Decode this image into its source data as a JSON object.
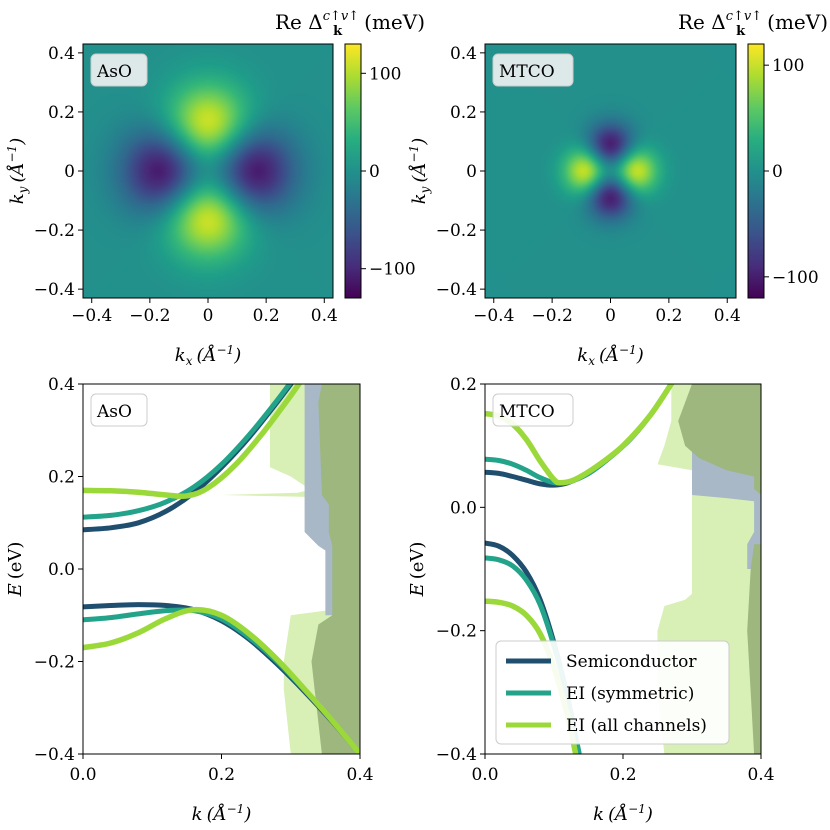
{
  "colors": {
    "semiconductor": "#1f4e6e",
    "ei_symmetric": "#22a38a",
    "ei_all": "#9bd93a",
    "fill_dark_green": "#9db77f",
    "fill_light_green": "#d8efb6",
    "fill_slate": "#a8b8c6"
  },
  "chart_data": [
    {
      "type": "heatmap",
      "panel_label": "AsO",
      "colorbar_title": "Re Δ",
      "colorbar_title_sub": "k",
      "colorbar_title_sup": "c↑v↑",
      "colorbar_title_unit": "(meV)",
      "colormap": "viridis",
      "xlabel_main": "k",
      "xlabel_sub": "x",
      "xlabel_unit": "(Å",
      "xlabel_exp": "−1",
      "ylabel_main": "k",
      "ylabel_sub": "y",
      "ylabel_unit": "(Å",
      "ylabel_exp": "−1",
      "xlim": [
        -0.43,
        0.43
      ],
      "ylim": [
        0.43,
        -0.43
      ],
      "x_ticks": [
        -0.4,
        -0.2,
        0,
        0.2,
        0.4
      ],
      "x_tick_labels": [
        "−0.4",
        "−0.2",
        "0",
        "0.2",
        "0.4"
      ],
      "y_ticks": [
        -0.4,
        -0.2,
        0,
        0.2,
        0.4
      ],
      "y_tick_labels": [
        "−0.4",
        "−0.2",
        "0",
        "0.2",
        "0.4"
      ],
      "clim": [
        -130,
        130
      ],
      "cbar_ticks": [
        100,
        0,
        -100
      ],
      "cbar_tick_labels": [
        "100",
        "0",
        "−100"
      ],
      "model": {
        "a": 0.15,
        "width": 0.1,
        "max_value": 130
      },
      "features": [
        {
          "kx": 0,
          "ky": -0.15,
          "value": 130
        },
        {
          "kx": 0,
          "ky": 0.15,
          "value": 130
        },
        {
          "kx": -0.15,
          "ky": 0,
          "value": -130
        },
        {
          "kx": 0.15,
          "ky": 0,
          "value": -130
        }
      ]
    },
    {
      "type": "heatmap",
      "panel_label": "MTCO",
      "colorbar_title": "Re Δ",
      "colorbar_title_sub": "k",
      "colorbar_title_sup": "c↑v↑",
      "colorbar_title_unit": "(meV)",
      "colormap": "viridis",
      "xlabel_main": "k",
      "xlabel_sub": "x",
      "xlabel_unit": "(Å",
      "xlabel_exp": "−1",
      "ylabel_main": "k",
      "ylabel_sub": "y",
      "ylabel_unit": "(Å",
      "ylabel_exp": "−1",
      "xlim": [
        -0.43,
        0.43
      ],
      "ylim": [
        0.43,
        -0.43
      ],
      "x_ticks": [
        -0.4,
        -0.2,
        0,
        0.2,
        0.4
      ],
      "x_tick_labels": [
        "−0.4",
        "−0.2",
        "0",
        "0.2",
        "0.4"
      ],
      "y_ticks": [
        -0.4,
        -0.2,
        0,
        0.2,
        0.4
      ],
      "y_tick_labels": [
        "−0.4",
        "−0.2",
        "0",
        "0.2",
        "0.4"
      ],
      "clim": [
        -120,
        120
      ],
      "cbar_ticks": [
        100,
        0,
        -100
      ],
      "cbar_tick_labels": [
        "100",
        "0",
        "−100"
      ],
      "model": {
        "a": 0.08,
        "width": 0.055,
        "max_value": 120
      },
      "features": [
        {
          "kx": -0.08,
          "ky": 0,
          "value": 120
        },
        {
          "kx": 0.08,
          "ky": 0,
          "value": 120
        },
        {
          "kx": 0,
          "ky": -0.08,
          "value": -120
        },
        {
          "kx": 0,
          "ky": 0.08,
          "value": -120
        }
      ]
    },
    {
      "type": "line",
      "panel_label": "AsO",
      "xlabel_main": "k",
      "xlabel_unit": "(Å",
      "xlabel_exp": "−1",
      "ylabel_main": "E",
      "ylabel_unit": "(eV)",
      "xlim": [
        0,
        0.4
      ],
      "ylim": [
        -0.4,
        0.4
      ],
      "x_ticks": [
        0,
        0.2,
        0.4
      ],
      "x_tick_labels": [
        "0.0",
        "0.2",
        "0.4"
      ],
      "y_ticks": [
        -0.4,
        -0.2,
        0,
        0.2,
        0.4
      ],
      "y_tick_labels": [
        "−0.4",
        "−0.2",
        "0.0",
        "0.2",
        "0.4"
      ],
      "series": [
        {
          "key": "semiconductor",
          "band": "c",
          "x": [
            0,
            0.04,
            0.08,
            0.12,
            0.16,
            0.2,
            0.24,
            0.28,
            0.32
          ],
          "y": [
            0.085,
            0.089,
            0.1,
            0.125,
            0.165,
            0.22,
            0.285,
            0.36,
            0.44
          ]
        },
        {
          "key": "ei_symmetric",
          "band": "c",
          "x": [
            0,
            0.04,
            0.08,
            0.12,
            0.16,
            0.2,
            0.24,
            0.28,
            0.32
          ],
          "y": [
            0.112,
            0.116,
            0.126,
            0.145,
            0.177,
            0.226,
            0.29,
            0.364,
            0.444
          ]
        },
        {
          "key": "ei_all",
          "band": "c",
          "x": [
            0,
            0.04,
            0.08,
            0.12,
            0.15,
            0.18,
            0.22,
            0.26,
            0.3,
            0.33
          ],
          "y": [
            0.17,
            0.169,
            0.166,
            0.16,
            0.158,
            0.175,
            0.225,
            0.295,
            0.375,
            0.44
          ]
        },
        {
          "key": "semiconductor",
          "band": "v",
          "x": [
            0,
            0.04,
            0.08,
            0.12,
            0.16,
            0.2,
            0.24,
            0.28,
            0.32,
            0.36,
            0.4
          ],
          "y": [
            -0.082,
            -0.079,
            -0.077,
            -0.079,
            -0.088,
            -0.112,
            -0.152,
            -0.205,
            -0.265,
            -0.33,
            -0.4
          ]
        },
        {
          "key": "ei_symmetric",
          "band": "v",
          "x": [
            0,
            0.04,
            0.08,
            0.12,
            0.16,
            0.2,
            0.24,
            0.28,
            0.32,
            0.36,
            0.4
          ],
          "y": [
            -0.11,
            -0.105,
            -0.097,
            -0.09,
            -0.09,
            -0.108,
            -0.148,
            -0.2,
            -0.262,
            -0.328,
            -0.4
          ]
        },
        {
          "key": "ei_all",
          "band": "v",
          "x": [
            0,
            0.04,
            0.08,
            0.12,
            0.16,
            0.2,
            0.24,
            0.28,
            0.32,
            0.36,
            0.4
          ],
          "y": [
            -0.17,
            -0.16,
            -0.138,
            -0.107,
            -0.088,
            -0.1,
            -0.14,
            -0.195,
            -0.26,
            -0.328,
            -0.4
          ]
        }
      ],
      "dos": [
        {
          "key": "fill_light_green",
          "points": [
            [
              0.27,
              0.4
            ],
            [
              0.27,
              0.22
            ],
            [
              0.3,
              0.2
            ],
            [
              0.32,
              0.18
            ],
            [
              0.325,
              0.17
            ],
            [
              0.31,
              0.165
            ],
            [
              0.2,
              0.16
            ],
            [
              0.35,
              0.155
            ],
            [
              0.35,
              -0.09
            ],
            [
              0.3,
              -0.1
            ],
            [
              0.29,
              -0.2
            ],
            [
              0.29,
              -0.26
            ],
            [
              0.3,
              -0.4
            ],
            [
              0.4,
              -0.4
            ],
            [
              0.4,
              0.4
            ]
          ]
        },
        {
          "key": "fill_slate",
          "points": [
            [
              0.32,
              0.4
            ],
            [
              0.32,
              0.08
            ],
            [
              0.34,
              0.05
            ],
            [
              0.35,
              0.04
            ],
            [
              0.35,
              -0.05
            ],
            [
              0.35,
              -0.1
            ],
            [
              0.4,
              -0.1
            ],
            [
              0.4,
              0.4
            ]
          ]
        },
        {
          "key": "fill_dark_green",
          "points": [
            [
              0.345,
              0.4
            ],
            [
              0.34,
              0.36
            ],
            [
              0.345,
              0.16
            ],
            [
              0.355,
              0.14
            ],
            [
              0.355,
              0.08
            ],
            [
              0.36,
              0.05
            ],
            [
              0.36,
              -0.06
            ],
            [
              0.36,
              -0.1
            ],
            [
              0.34,
              -0.12
            ],
            [
              0.33,
              -0.2
            ],
            [
              0.345,
              -0.4
            ],
            [
              0.4,
              -0.4
            ],
            [
              0.4,
              0.4
            ]
          ]
        }
      ]
    },
    {
      "type": "line",
      "panel_label": "MTCO",
      "xlabel_main": "k",
      "xlabel_unit": "(Å",
      "xlabel_exp": "−1",
      "ylabel_main": "E",
      "ylabel_unit": "(eV)",
      "xlim": [
        0,
        0.4
      ],
      "ylim": [
        -0.4,
        0.2
      ],
      "x_ticks": [
        0,
        0.2,
        0.4
      ],
      "x_tick_labels": [
        "0.0",
        "0.2",
        "0.4"
      ],
      "y_ticks": [
        -0.4,
        -0.2,
        0,
        0.2
      ],
      "y_tick_labels": [
        "−0.4",
        "−0.2",
        "0.0",
        "0.2"
      ],
      "series": [
        {
          "key": "semiconductor",
          "band": "c",
          "x": [
            0,
            0.02,
            0.04,
            0.06,
            0.08,
            0.1,
            0.12,
            0.15,
            0.18,
            0.21,
            0.24,
            0.27
          ],
          "y": [
            0.057,
            0.055,
            0.05,
            0.044,
            0.038,
            0.036,
            0.04,
            0.055,
            0.08,
            0.11,
            0.15,
            0.2
          ]
        },
        {
          "key": "ei_symmetric",
          "band": "c",
          "x": [
            0,
            0.02,
            0.04,
            0.06,
            0.08,
            0.1,
            0.12,
            0.15,
            0.18,
            0.21,
            0.24,
            0.27
          ],
          "y": [
            0.078,
            0.076,
            0.07,
            0.06,
            0.048,
            0.04,
            0.041,
            0.055,
            0.08,
            0.11,
            0.15,
            0.2
          ]
        },
        {
          "key": "ei_all",
          "band": "c",
          "x": [
            0,
            0.02,
            0.04,
            0.06,
            0.08,
            0.1,
            0.11,
            0.13,
            0.16,
            0.2,
            0.24,
            0.27
          ],
          "y": [
            0.152,
            0.148,
            0.135,
            0.11,
            0.075,
            0.045,
            0.04,
            0.045,
            0.065,
            0.1,
            0.15,
            0.2
          ]
        },
        {
          "key": "semiconductor",
          "band": "v",
          "x": [
            0,
            0.02,
            0.04,
            0.06,
            0.08,
            0.1,
            0.12,
            0.14
          ],
          "y": [
            -0.058,
            -0.063,
            -0.078,
            -0.105,
            -0.15,
            -0.22,
            -0.31,
            -0.42
          ]
        },
        {
          "key": "ei_symmetric",
          "band": "v",
          "x": [
            0,
            0.02,
            0.04,
            0.06,
            0.08,
            0.1,
            0.12,
            0.14
          ],
          "y": [
            -0.082,
            -0.085,
            -0.095,
            -0.118,
            -0.158,
            -0.225,
            -0.31,
            -0.42
          ]
        },
        {
          "key": "ei_all",
          "band": "v",
          "x": [
            0,
            0.02,
            0.04,
            0.06,
            0.08,
            0.1,
            0.12,
            0.135
          ],
          "y": [
            -0.152,
            -0.154,
            -0.16,
            -0.175,
            -0.205,
            -0.26,
            -0.34,
            -0.42
          ]
        }
      ],
      "dos": [
        {
          "key": "fill_light_green",
          "points": [
            [
              0.27,
              0.2
            ],
            [
              0.27,
              0.14
            ],
            [
              0.26,
              0.1
            ],
            [
              0.25,
              0.07
            ],
            [
              0.3,
              0.06
            ],
            [
              0.3,
              -0.14
            ],
            [
              0.29,
              -0.15
            ],
            [
              0.26,
              -0.16
            ],
            [
              0.25,
              -0.2
            ],
            [
              0.25,
              -0.3
            ],
            [
              0.26,
              -0.4
            ],
            [
              0.4,
              -0.4
            ],
            [
              0.4,
              0.2
            ]
          ]
        },
        {
          "key": "fill_slate",
          "points": [
            [
              0.3,
              0.2
            ],
            [
              0.3,
              0.02
            ],
            [
              0.35,
              0.015
            ],
            [
              0.39,
              0.01
            ],
            [
              0.39,
              -0.04
            ],
            [
              0.38,
              -0.06
            ],
            [
              0.38,
              -0.1
            ],
            [
              0.4,
              -0.1
            ],
            [
              0.4,
              0.2
            ]
          ]
        },
        {
          "key": "fill_dark_green",
          "points": [
            [
              0.3,
              0.2
            ],
            [
              0.29,
              0.17
            ],
            [
              0.28,
              0.14
            ],
            [
              0.29,
              0.1
            ],
            [
              0.31,
              0.08
            ],
            [
              0.35,
              0.06
            ],
            [
              0.39,
              0.05
            ],
            [
              0.39,
              0.03
            ],
            [
              0.4,
              0.02
            ],
            [
              0.4,
              0.2
            ]
          ]
        },
        {
          "key": "fill_dark_green",
          "points": [
            [
              0.39,
              -0.06
            ],
            [
              0.385,
              -0.1
            ],
            [
              0.38,
              -0.2
            ],
            [
              0.385,
              -0.3
            ],
            [
              0.39,
              -0.4
            ],
            [
              0.4,
              -0.4
            ],
            [
              0.4,
              -0.06
            ]
          ]
        }
      ],
      "legend": {
        "position": "lower-left",
        "entries": [
          {
            "key": "semiconductor",
            "label": "Semiconductor"
          },
          {
            "key": "ei_symmetric",
            "label": "EI (symmetric)"
          },
          {
            "key": "ei_all",
            "label": "EI (all channels)"
          }
        ]
      }
    }
  ]
}
